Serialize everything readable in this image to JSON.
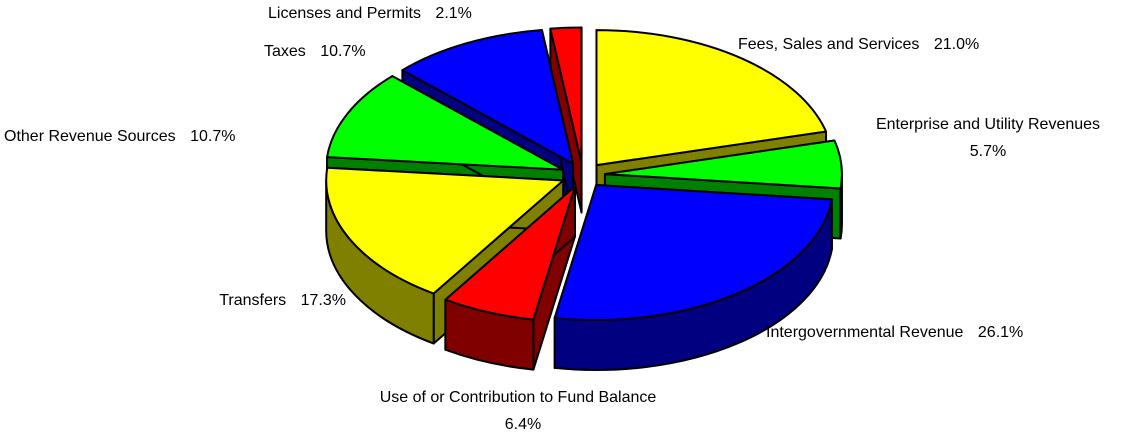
{
  "chart_data": {
    "type": "pie",
    "categories": [
      "Fees, Sales and Services",
      "Enterprise and Utility Revenues",
      "Intergovernmental Revenue",
      "Use of or Contribution to Fund Balance",
      "Transfers",
      "Other Revenue Sources",
      "Taxes",
      "Licenses and Permits"
    ],
    "values": [
      21.0,
      5.7,
      26.1,
      6.4,
      17.3,
      10.7,
      10.7,
      2.1
    ],
    "value_labels": [
      "21.0%",
      "5.7%",
      "26.1%",
      "6.4%",
      "17.3%",
      "10.7%",
      "10.7%",
      "2.1%"
    ],
    "colors": [
      "#ffff00",
      "#00ff00",
      "#0000ff",
      "#ff0000",
      "#ffff00",
      "#00ff00",
      "#0000ff",
      "#ff0000"
    ],
    "side_colors": [
      "#808000",
      "#008000",
      "#000080",
      "#800000",
      "#808000",
      "#008000",
      "#000080",
      "#800000"
    ]
  }
}
